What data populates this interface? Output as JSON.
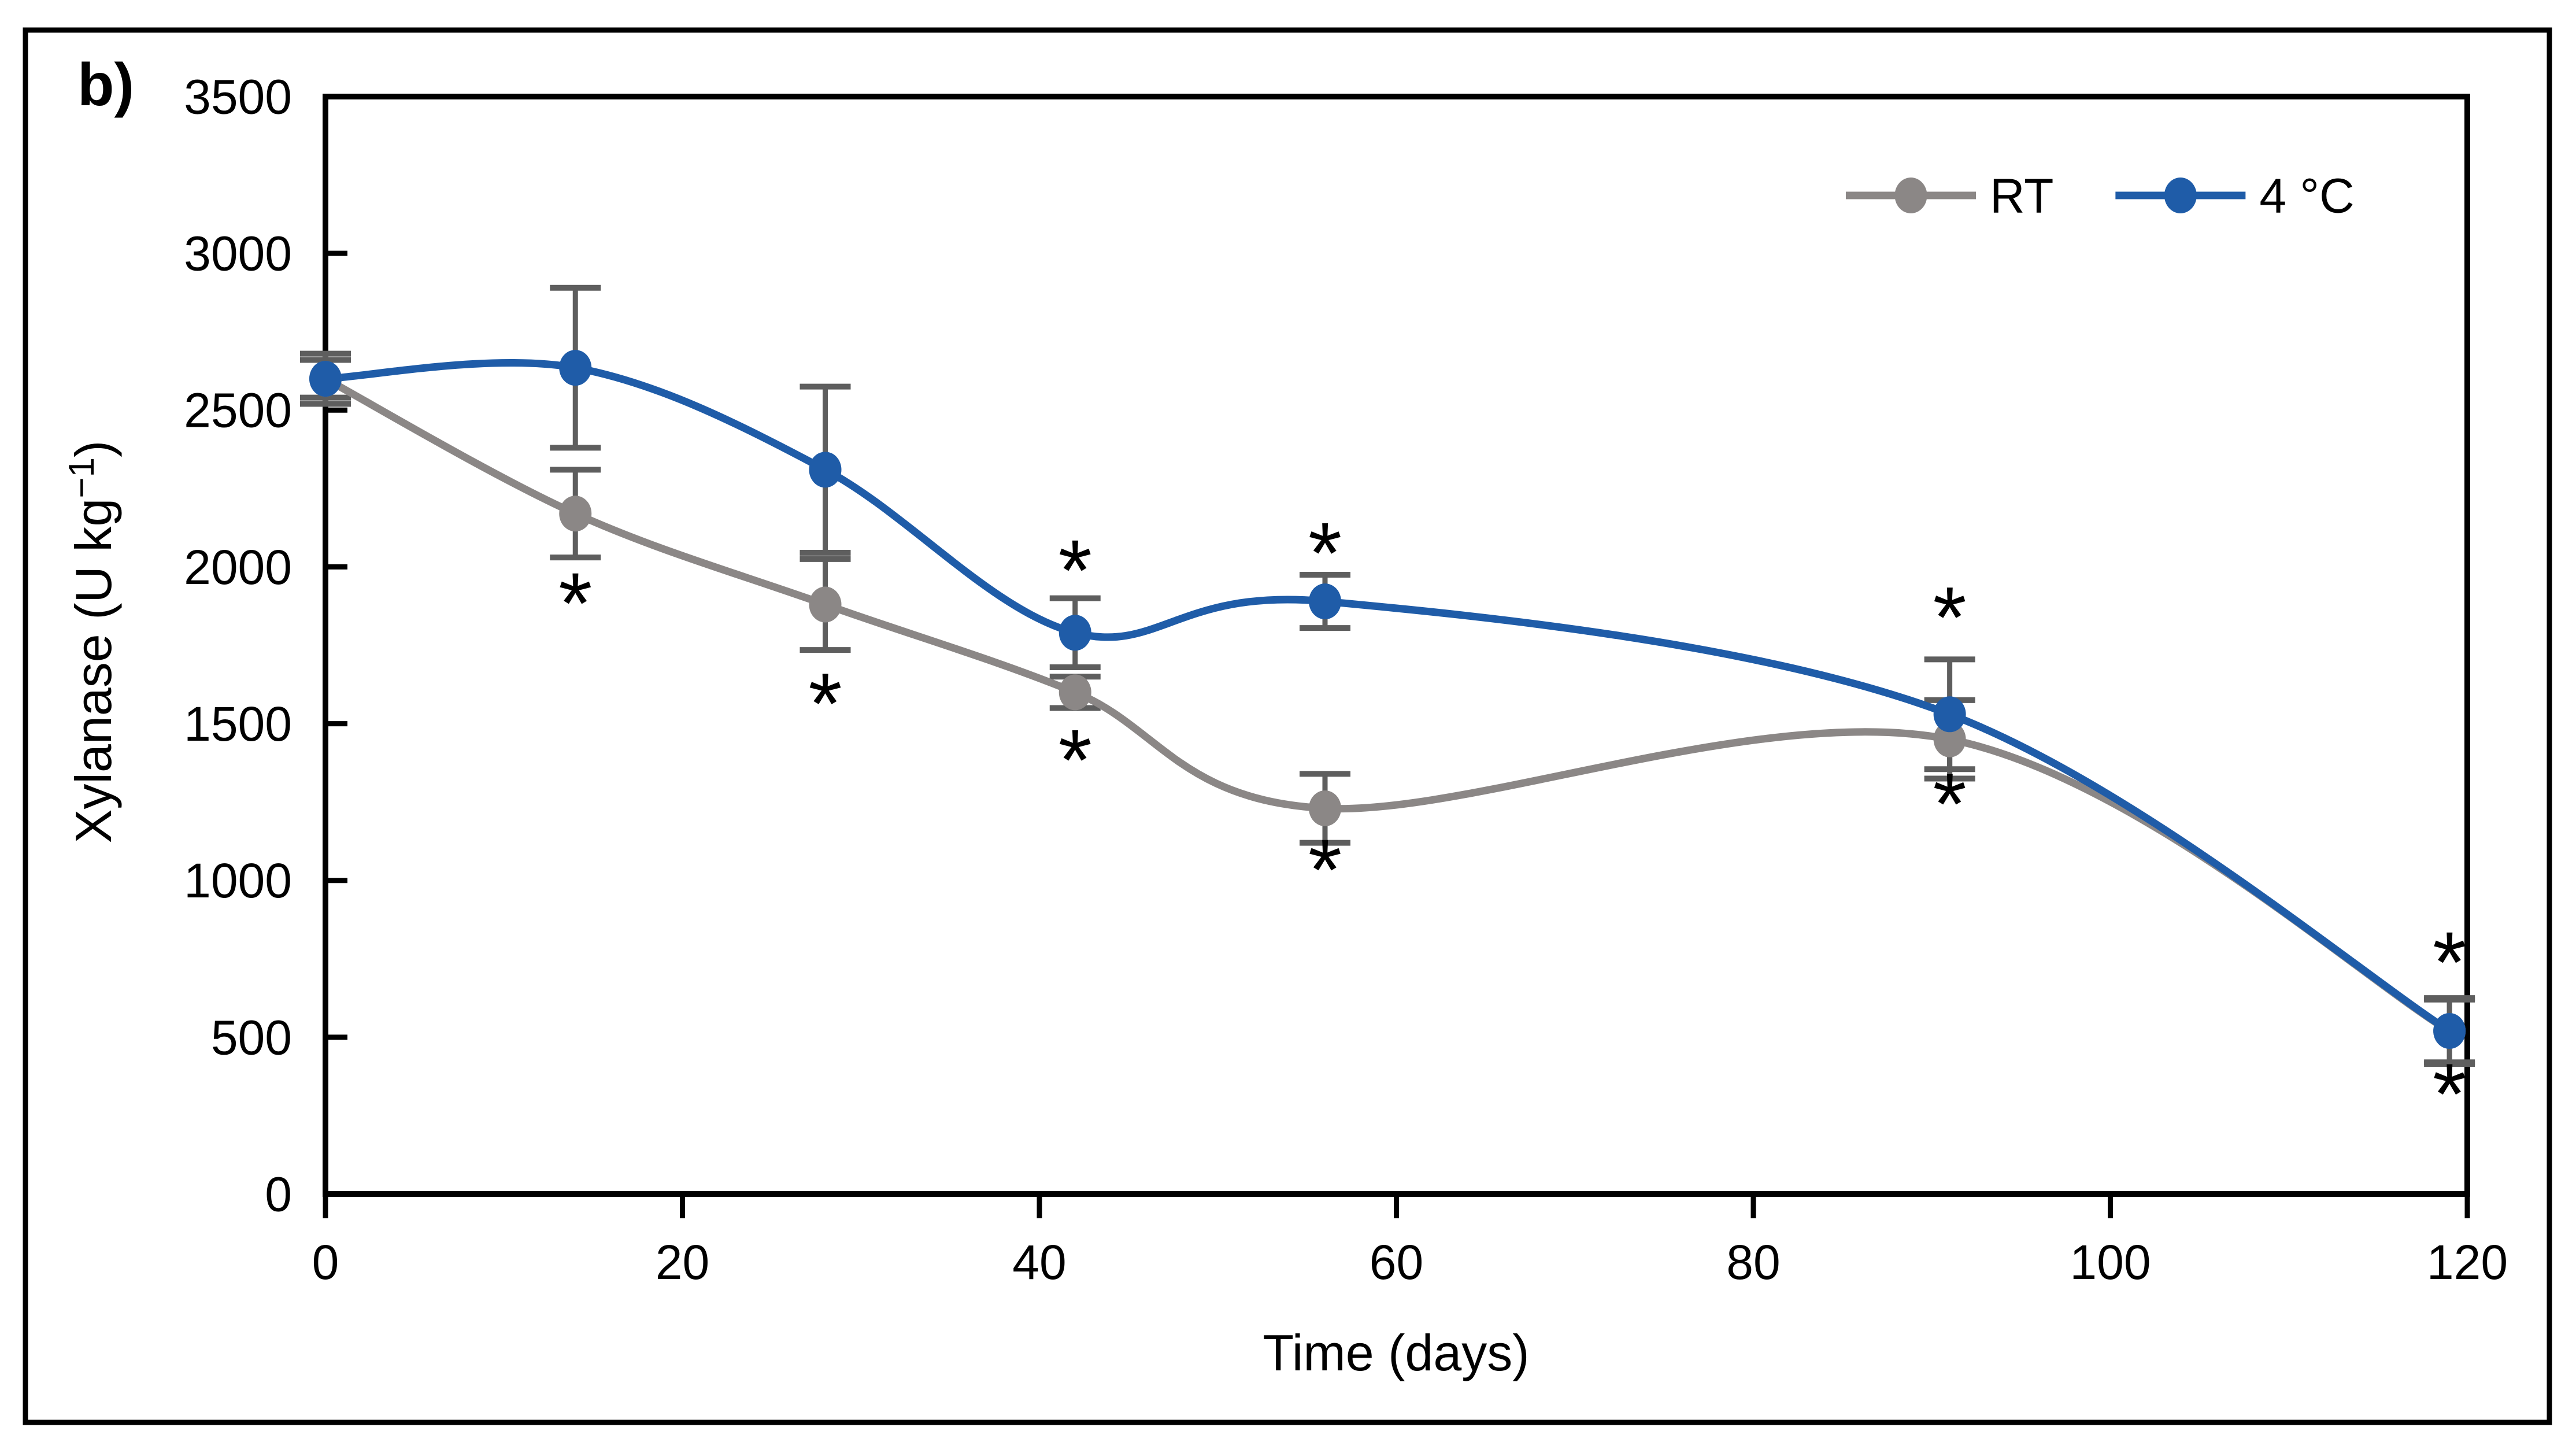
{
  "figure": {
    "panel_label": "b)"
  },
  "chart_data": {
    "type": "line",
    "title": "",
    "xlabel": "Time (days)",
    "ylabel": "Xylanase (U kg−1)",
    "ylabel_parts": {
      "pre": "Xylanase (U kg",
      "sup": "−1",
      "post": ")"
    },
    "xlim": [
      0,
      120
    ],
    "ylim": [
      0,
      3500
    ],
    "xticks": [
      0,
      20,
      40,
      60,
      80,
      100,
      120
    ],
    "yticks": [
      0,
      500,
      1000,
      1500,
      2000,
      2500,
      3000,
      3500
    ],
    "grid": false,
    "legend_position": "top-right",
    "smooth_lines": true,
    "error_bar_color": "#5E5E5E",
    "x": [
      0,
      14,
      28,
      42,
      56,
      91,
      119
    ],
    "series": [
      {
        "name": "RT",
        "color": "#8B8786",
        "values": [
          2600,
          2170,
          1880,
          1600,
          1230,
          1450,
          520
        ],
        "errors": [
          80,
          140,
          145,
          50,
          110,
          125,
          105
        ]
      },
      {
        "name": "4 °C",
        "color": "#1F5CA8",
        "values": [
          2600,
          2635,
          2310,
          1790,
          1890,
          1530,
          520
        ],
        "errors": [
          60,
          255,
          265,
          110,
          85,
          175,
          100
        ]
      }
    ],
    "significance_stars": [
      {
        "x": 14,
        "y": 1880
      },
      {
        "x": 28,
        "y": 1560
      },
      {
        "x": 42,
        "y": 1985
      },
      {
        "x": 42,
        "y": 1380
      },
      {
        "x": 56,
        "y": 2040
      },
      {
        "x": 56,
        "y": 1030
      },
      {
        "x": 91,
        "y": 1835
      },
      {
        "x": 91,
        "y": 1240
      },
      {
        "x": 119,
        "y": 735
      },
      {
        "x": 119,
        "y": 315
      }
    ],
    "star_glyph": "*"
  }
}
